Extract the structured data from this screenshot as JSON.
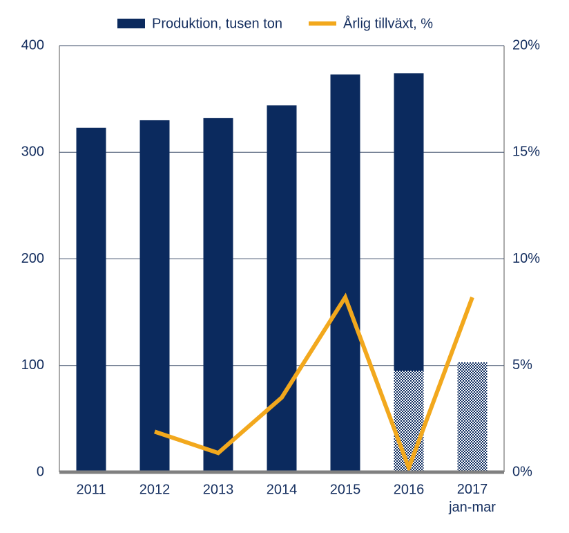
{
  "chart_data": {
    "type": "bar_line",
    "categories": [
      "2011",
      "2012",
      "2013",
      "2014",
      "2015",
      "2016",
      "2017\njan-mar"
    ],
    "series": [
      {
        "name": "Produktion, tusen ton",
        "type": "bar",
        "color": "#0b2a5e",
        "values": [
          323,
          330,
          332,
          344,
          373,
          374,
          null
        ]
      },
      {
        "type": "bar",
        "color": "#0b2a5e",
        "pattern": "checkered",
        "values": [
          null,
          null,
          null,
          null,
          null,
          95,
          103
        ]
      },
      {
        "name": "Årlig tillväxt, %",
        "type": "line",
        "axis": "y2",
        "color": "#f2a81d",
        "values": [
          null,
          1.9,
          0.9,
          3.5,
          8.2,
          0.2,
          8.2
        ]
      }
    ],
    "ylim": [
      0,
      400
    ],
    "yticks": [
      0,
      100,
      200,
      300,
      400
    ],
    "y2lim": [
      0,
      20
    ],
    "y2ticks": [
      {
        "value": 0,
        "label": "0%"
      },
      {
        "value": 5,
        "label": "5%"
      },
      {
        "value": 10,
        "label": "10%"
      },
      {
        "value": 15,
        "label": "15%"
      },
      {
        "value": 20,
        "label": "20%"
      }
    ],
    "grid": true,
    "legend": "top"
  }
}
